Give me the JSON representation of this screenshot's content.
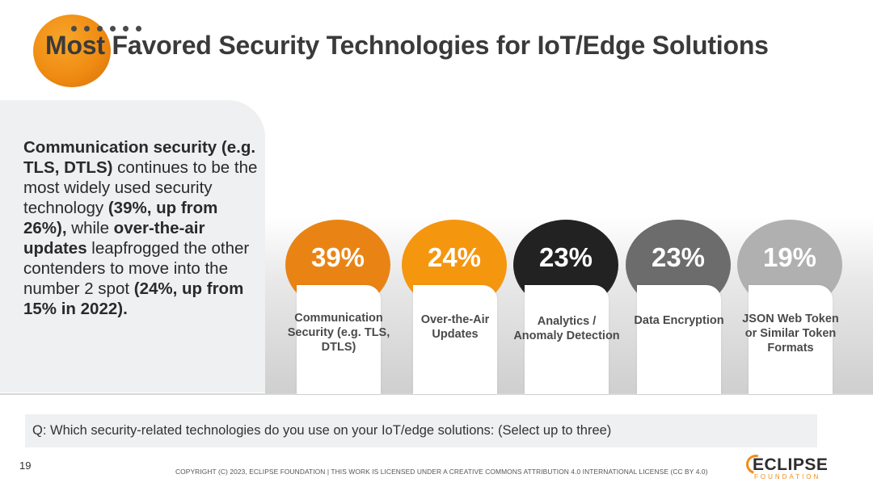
{
  "header": {
    "title": "Most Favored Security Technologies for IoT/Edge Solutions"
  },
  "summary": {
    "parts": [
      "Communication security (e.g. TLS, DTLS)",
      " continues to be the most widely used security technology ",
      "(39%, up from 26%),",
      " while ",
      "over-the-air updates",
      " leapfrogged the other contenders to move into the number 2 spot ",
      "(24%, up from 15% in 2022)."
    ]
  },
  "chart_data": {
    "type": "bar",
    "title": "Most Favored Security Technologies for IoT/Edge Solutions",
    "categories": [
      "Communication Security (e.g. TLS, DTLS)",
      "Over-the-Air Updates",
      "Analytics / Anomaly Detection",
      "Data Encryption",
      "JSON Web Token or Similar Token Formats"
    ],
    "values": [
      39,
      24,
      23,
      23,
      19
    ],
    "value_labels": [
      "39%",
      "24%",
      "23%",
      "23%",
      "19%"
    ],
    "unit": "%",
    "colors": [
      "#e98414",
      "#f5960f",
      "#222222",
      "#6c6c6c",
      "#b0b0b0"
    ],
    "xlabel": "",
    "ylabel": ""
  },
  "question": {
    "text": "Q: Which security-related technologies do you use on your IoT/edge solutions: (Select up to three)"
  },
  "footer": {
    "page_number": "19",
    "copyright": "COPYRIGHT (C) 2023, ECLIPSE FOUNDATION | THIS WORK IS LICENSED UNDER A CREATIVE COMMONS ATTRIBUTION 4.0 INTERNATIONAL LICENSE (CC BY 4.0)",
    "logo_word": "ECLIPSE",
    "logo_sub": "FOUNDATION"
  }
}
